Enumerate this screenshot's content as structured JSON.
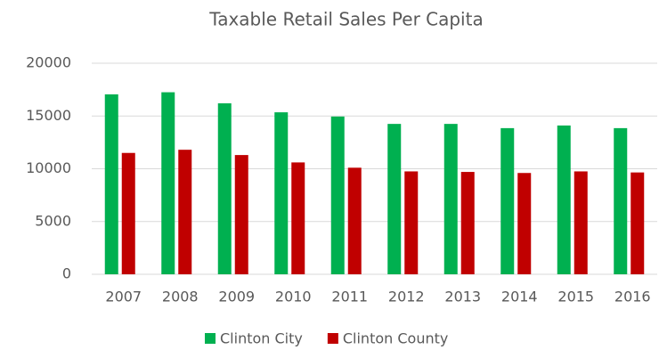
{
  "chart_data": {
    "type": "bar",
    "title": "Taxable Retail Sales Per Capita",
    "categories": [
      "2007",
      "2008",
      "2009",
      "2010",
      "2011",
      "2012",
      "2013",
      "2014",
      "2015",
      "2016"
    ],
    "series": [
      {
        "name": "Clinton City",
        "color": "#00b050",
        "values": [
          17050,
          17250,
          16200,
          15350,
          14950,
          14250,
          14250,
          13850,
          14100,
          13850
        ]
      },
      {
        "name": "Clinton County",
        "color": "#c00000",
        "values": [
          11500,
          11800,
          11300,
          10600,
          10100,
          9750,
          9700,
          9600,
          9750,
          9650
        ]
      }
    ],
    "ylim": [
      0,
      20000
    ],
    "yticks": [
      0,
      5000,
      10000,
      15000,
      20000
    ],
    "grid": true,
    "legend": "bottom"
  }
}
